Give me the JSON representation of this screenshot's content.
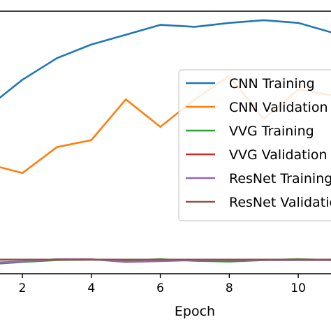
{
  "chart_data": {
    "type": "line",
    "xlabel": "Epoch",
    "ylabel": "",
    "title": "",
    "xlim": [
      1.35,
      10.95
    ],
    "ylim": [
      0.225,
      0.895
    ],
    "xticks": [
      2,
      4,
      6,
      8,
      10
    ],
    "grid": false,
    "legend_position": "center-right",
    "series": [
      {
        "name": "CNN Training",
        "color": "#1f77b4",
        "x": [
          1,
          2,
          3,
          4,
          5,
          6,
          7,
          8,
          9,
          10,
          11
        ],
        "y": [
          0.65,
          0.72,
          0.775,
          0.81,
          0.835,
          0.86,
          0.855,
          0.865,
          0.872,
          0.865,
          0.84
        ]
      },
      {
        "name": "CNN Validation",
        "color": "#ff7f0e",
        "x": [
          1,
          2,
          3,
          4,
          5,
          6,
          7,
          8,
          9,
          10,
          11
        ],
        "y": [
          0.505,
          0.482,
          0.548,
          0.566,
          0.67,
          0.6,
          0.67,
          0.73,
          0.62,
          0.695,
          0.68
        ]
      },
      {
        "name": "VVG Training",
        "color": "#2ca02c",
        "x": [
          1,
          2,
          3,
          4,
          5,
          6,
          7,
          8,
          9,
          10,
          11
        ],
        "y": [
          0.249,
          0.255,
          0.26,
          0.261,
          0.259,
          0.262,
          0.258,
          0.256,
          0.26,
          0.262,
          0.26
        ]
      },
      {
        "name": "VVG Validation",
        "color": "#d62728",
        "x": [
          1,
          2,
          3,
          4,
          5,
          6,
          7,
          8,
          9,
          10,
          11
        ],
        "y": [
          0.261,
          0.261,
          0.261,
          0.261,
          0.261,
          0.261,
          0.261,
          0.261,
          0.261,
          0.261,
          0.261
        ]
      },
      {
        "name": "ResNet Training",
        "color": "#9467bd",
        "x": [
          1,
          2,
          3,
          4,
          5,
          6,
          7,
          8,
          9,
          10,
          11
        ],
        "y": [
          0.253,
          0.256,
          0.262,
          0.262,
          0.255,
          0.257,
          0.26,
          0.26,
          0.26,
          0.26,
          0.26
        ]
      },
      {
        "name": "ResNet Validation",
        "color": "#8c564b",
        "x": [
          1,
          2,
          3,
          4,
          5,
          6,
          7,
          8,
          9,
          10,
          11
        ],
        "y": [
          0.261,
          0.261,
          0.261,
          0.261,
          0.261,
          0.261,
          0.261,
          0.261,
          0.261,
          0.261,
          0.261
        ]
      }
    ]
  }
}
